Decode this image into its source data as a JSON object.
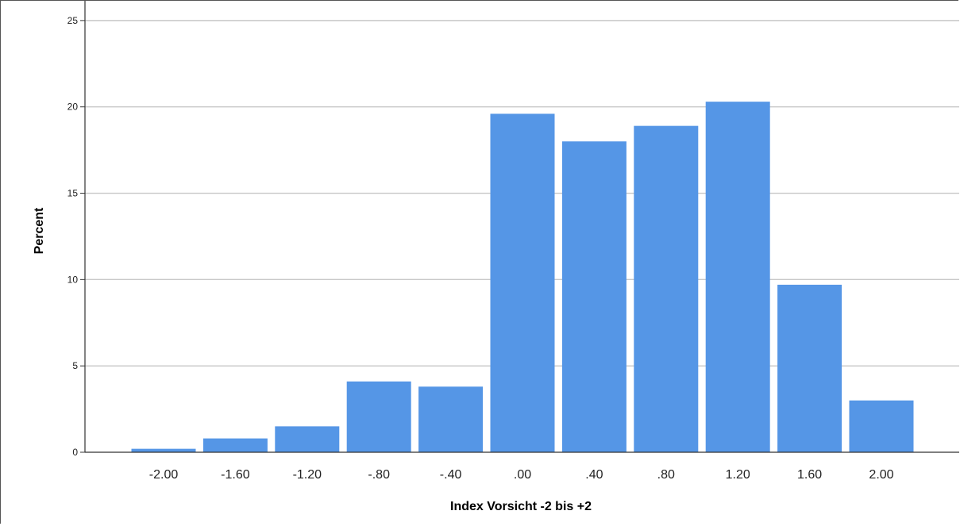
{
  "chart_data": {
    "type": "bar",
    "xlabel": "Index Vorsicht -2 bis +2",
    "ylabel": "Percent",
    "categories": [
      "-2.00",
      "-1.60",
      "-1.20",
      "-.80",
      "-.40",
      ".00",
      ".40",
      ".80",
      "1.20",
      "1.60",
      "2.00"
    ],
    "values": [
      0.2,
      0.8,
      1.5,
      4.1,
      3.8,
      19.6,
      18.0,
      18.9,
      20.3,
      9.7,
      3.0
    ],
    "y_ticks": [
      "0",
      "5",
      "10",
      "15",
      "20",
      "25"
    ],
    "ylim": [
      0,
      25.5
    ],
    "grid": true,
    "colors": {
      "bar": "#5596e6",
      "grid": "#c8c8c8",
      "axis": "#333333"
    }
  }
}
